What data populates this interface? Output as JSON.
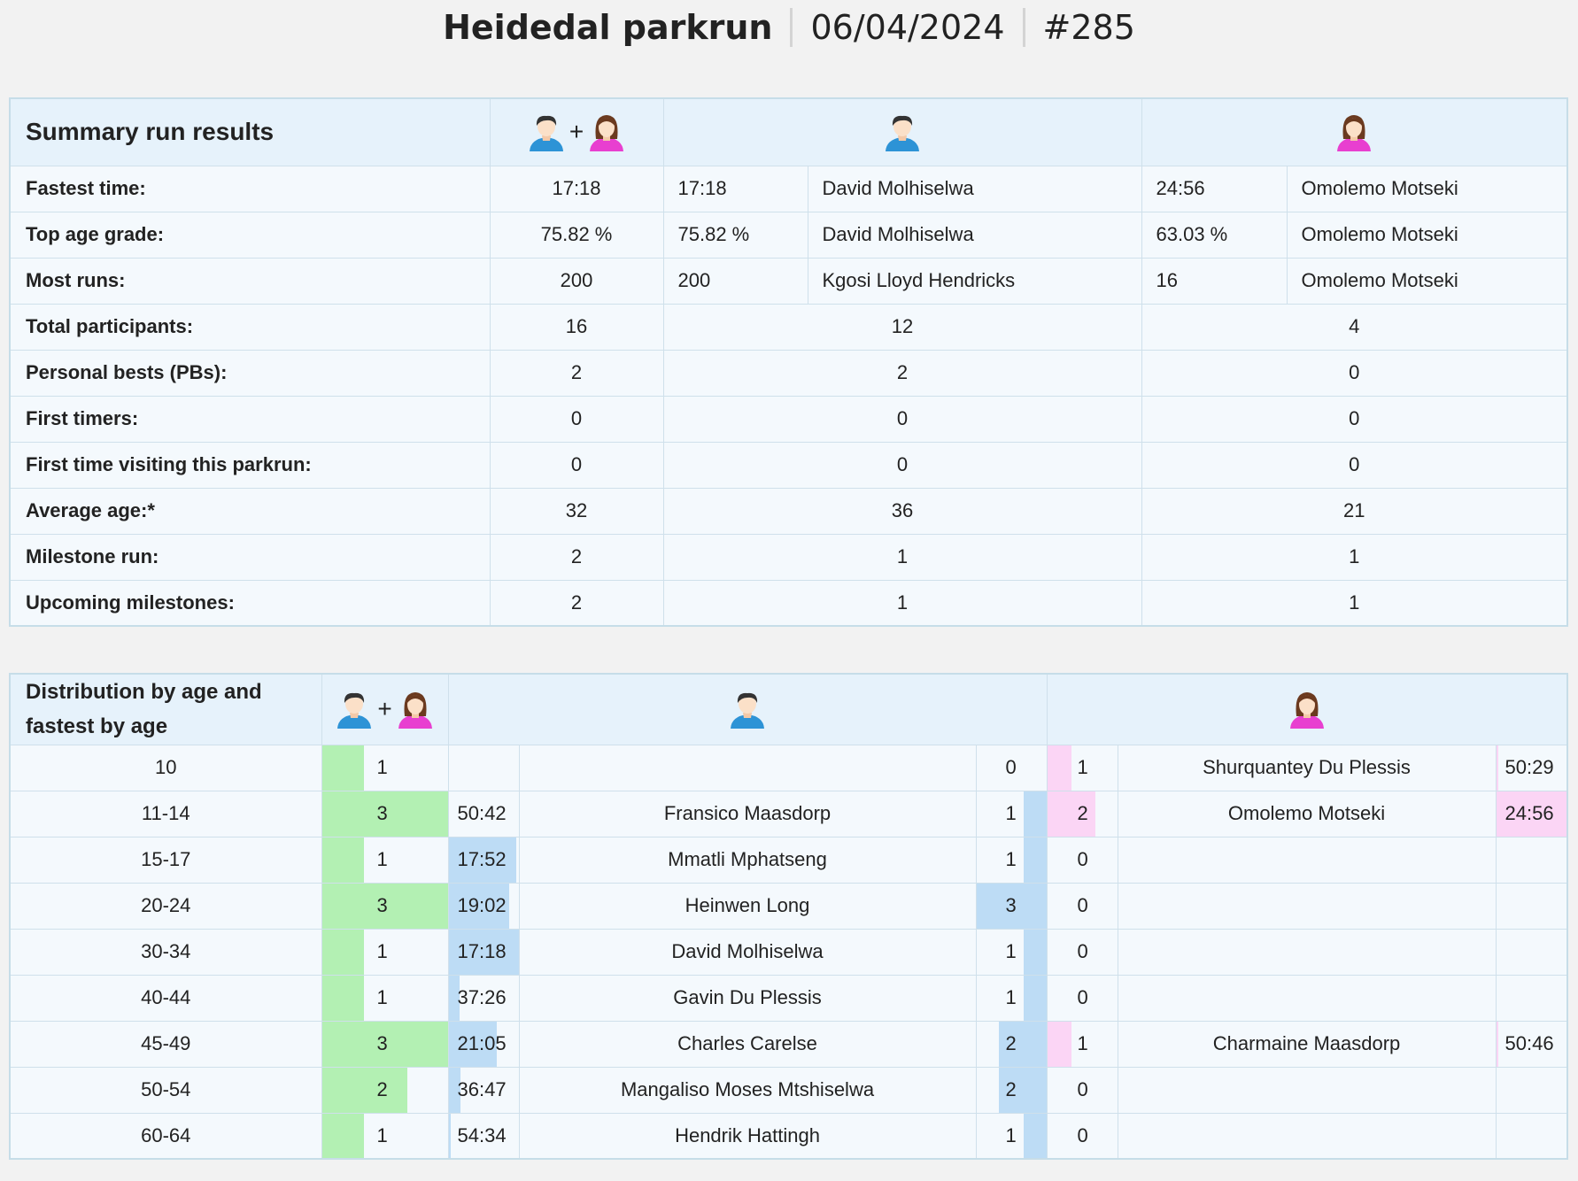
{
  "header": {
    "event": "Heidedal parkrun",
    "date": "06/04/2024",
    "number": "#285"
  },
  "colors": {
    "male_bar": "#bddcf5",
    "female_bar": "#fbd5f5",
    "total_bar": "#b3f0b3",
    "border": "#cfe0eb",
    "header_bg": "#e6f2fb"
  },
  "summary": {
    "title": "Summary run results",
    "header_icons": {
      "all": [
        "male-avatar-icon",
        "female-avatar-icon"
      ],
      "male": "male-avatar-icon",
      "female": "female-avatar-icon",
      "plus": "+"
    },
    "rows_detail": [
      {
        "label": "Fastest time:",
        "all": "17:18",
        "male_val": "17:18",
        "male_name": "David Molhiselwa",
        "female_val": "24:56",
        "female_name": "Omolemo Motseki"
      },
      {
        "label": "Top age grade:",
        "all": "75.82 %",
        "male_val": "75.82 %",
        "male_name": "David Molhiselwa",
        "female_val": "63.03 %",
        "female_name": "Omolemo Motseki"
      },
      {
        "label": "Most runs:",
        "all": "200",
        "male_val": "200",
        "male_name": "Kgosi Lloyd Hendricks",
        "female_val": "16",
        "female_name": "Omolemo Motseki"
      }
    ],
    "rows_simple": [
      {
        "label": "Total participants:",
        "all": "16",
        "male": "12",
        "female": "4"
      },
      {
        "label": "Personal bests (PBs):",
        "all": "2",
        "male": "2",
        "female": "0"
      },
      {
        "label": "First timers:",
        "all": "0",
        "male": "0",
        "female": "0"
      },
      {
        "label": "First time visiting this parkrun:",
        "all": "0",
        "male": "0",
        "female": "0"
      },
      {
        "label": "Average age:*",
        "all": "32",
        "male": "36",
        "female": "21"
      },
      {
        "label": "Milestone run:",
        "all": "2",
        "male": "1",
        "female": "1"
      },
      {
        "label": "Upcoming milestones:",
        "all": "2",
        "male": "1",
        "female": "1"
      }
    ]
  },
  "distribution": {
    "title": "Distribution by age and fastest by age",
    "rows": [
      {
        "age": "10",
        "total": "1",
        "male_time": "",
        "male_name": "",
        "male_count": "0",
        "female_count": "1",
        "female_name": "Shurquantey Du Plessis",
        "female_time": "50:29",
        "total_frac": 0.33,
        "male_time_frac": 0,
        "male_count_frac": 0,
        "female_count_frac": 0.5,
        "female_time_frac": 0.03
      },
      {
        "age": "11-14",
        "total": "3",
        "male_time": "50:42",
        "male_name": "Fransico Maasdorp",
        "male_count": "1",
        "female_count": "2",
        "female_name": "Omolemo Motseki",
        "female_time": "24:56",
        "total_frac": 1,
        "male_time_frac": 0,
        "male_count_frac": 0.33,
        "female_count_frac": 1,
        "female_time_frac": 1
      },
      {
        "age": "15-17",
        "total": "1",
        "male_time": "17:52",
        "male_name": "Mmatli Mphatseng",
        "male_count": "1",
        "female_count": "0",
        "female_name": "",
        "female_time": "",
        "total_frac": 0.33,
        "male_time_frac": 0.95,
        "male_count_frac": 0.33,
        "female_count_frac": 0,
        "female_time_frac": 0
      },
      {
        "age": "20-24",
        "total": "3",
        "male_time": "19:02",
        "male_name": "Heinwen Long",
        "male_count": "3",
        "female_count": "0",
        "female_name": "",
        "female_time": "",
        "total_frac": 1,
        "male_time_frac": 0.85,
        "male_count_frac": 1,
        "female_count_frac": 0,
        "female_time_frac": 0
      },
      {
        "age": "30-34",
        "total": "1",
        "male_time": "17:18",
        "male_name": "David Molhiselwa",
        "male_count": "1",
        "female_count": "0",
        "female_name": "",
        "female_time": "",
        "total_frac": 0.33,
        "male_time_frac": 1,
        "male_count_frac": 0.33,
        "female_count_frac": 0,
        "female_time_frac": 0
      },
      {
        "age": "40-44",
        "total": "1",
        "male_time": "37:26",
        "male_name": "Gavin Du Plessis",
        "male_count": "1",
        "female_count": "0",
        "female_name": "",
        "female_time": "",
        "total_frac": 0.33,
        "male_time_frac": 0.15,
        "male_count_frac": 0.33,
        "female_count_frac": 0,
        "female_time_frac": 0
      },
      {
        "age": "45-49",
        "total": "3",
        "male_time": "21:05",
        "male_name": "Charles Carelse",
        "male_count": "2",
        "female_count": "1",
        "female_name": "Charmaine Maasdorp",
        "female_time": "50:46",
        "total_frac": 1,
        "male_time_frac": 0.68,
        "male_count_frac": 0.67,
        "female_count_frac": 0.5,
        "female_time_frac": 0.03
      },
      {
        "age": "50-54",
        "total": "2",
        "male_time": "36:47",
        "male_name": "Mangaliso Moses Mtshiselwa",
        "male_count": "2",
        "female_count": "0",
        "female_name": "",
        "female_time": "",
        "total_frac": 0.67,
        "male_time_frac": 0.16,
        "male_count_frac": 0.67,
        "female_count_frac": 0,
        "female_time_frac": 0
      },
      {
        "age": "60-64",
        "total": "1",
        "male_time": "54:34",
        "male_name": "Hendrik Hattingh",
        "male_count": "1",
        "female_count": "0",
        "female_name": "",
        "female_time": "",
        "total_frac": 0.33,
        "male_time_frac": 0.03,
        "male_count_frac": 0.33,
        "female_count_frac": 0,
        "female_time_frac": 0
      }
    ]
  }
}
